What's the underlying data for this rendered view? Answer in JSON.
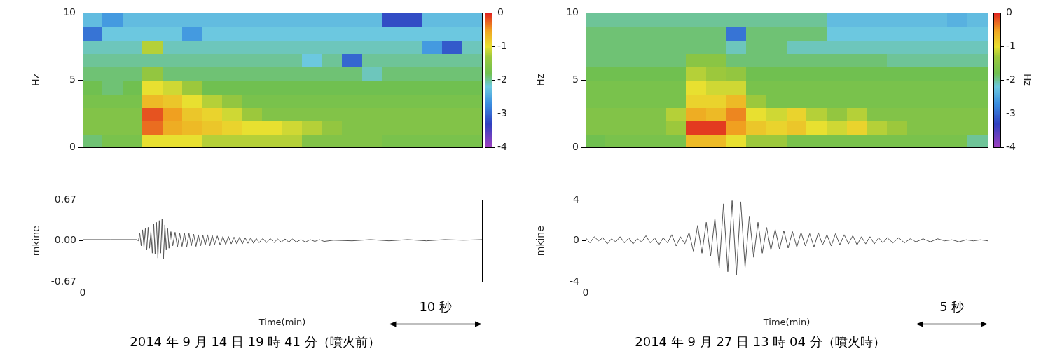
{
  "chart_data": [
    {
      "type": "heatmap",
      "y_label": "Hz",
      "grid": false,
      "tick_labels": "y",
      "xlim": [
        0,
        43
      ],
      "ylim": [
        0,
        10
      ],
      "yticks": [
        0,
        5,
        10
      ],
      "x_bins": [
        0,
        2.15,
        4.3,
        6.45,
        8.6,
        10.75,
        12.9,
        15.05,
        17.2,
        19.35,
        21.5,
        23.65,
        25.8,
        27.95,
        30.1,
        32.25,
        34.4,
        36.55,
        38.7,
        40.85,
        43
      ],
      "y_bins": [
        0,
        1,
        2,
        3,
        4,
        5,
        6,
        7,
        8,
        9,
        10
      ],
      "cells": [
        [
          -1.9,
          -1.7,
          -1.7,
          -1.0,
          -1.0,
          -1.0,
          -1.2,
          -1.2,
          -1.2,
          -1.2,
          -1.2,
          -1.6,
          -1.6,
          -1.6,
          -1.6,
          -1.7,
          -1.7,
          -1.7,
          -1.7,
          -1.7
        ],
        [
          -1.6,
          -1.6,
          -1.6,
          -0.3,
          -0.6,
          -0.7,
          -0.8,
          -0.9,
          -1.0,
          -1.0,
          -1.1,
          -1.2,
          -1.4,
          -1.6,
          -1.6,
          -1.6,
          -1.6,
          -1.6,
          -1.6,
          -1.6
        ],
        [
          -1.6,
          -1.6,
          -1.6,
          -0.2,
          -0.5,
          -0.8,
          -0.9,
          -1.1,
          -1.3,
          -1.6,
          -1.6,
          -1.6,
          -1.6,
          -1.6,
          -1.6,
          -1.6,
          -1.6,
          -1.6,
          -1.6,
          -1.6
        ],
        [
          -1.7,
          -1.7,
          -1.7,
          -0.7,
          -0.8,
          -1.0,
          -1.2,
          -1.4,
          -1.7,
          -1.7,
          -1.7,
          -1.7,
          -1.7,
          -1.7,
          -1.7,
          -1.7,
          -1.7,
          -1.7,
          -1.7,
          -1.7
        ],
        [
          -1.8,
          -1.9,
          -1.8,
          -1.0,
          -1.1,
          -1.3,
          -1.8,
          -1.8,
          -1.8,
          -1.8,
          -1.8,
          -1.8,
          -1.8,
          -1.8,
          -1.8,
          -1.8,
          -1.8,
          -1.8,
          -1.8,
          -1.8
        ],
        [
          -1.9,
          -1.9,
          -1.9,
          -1.4,
          -1.9,
          -1.9,
          -1.9,
          -1.9,
          -1.9,
          -1.9,
          -1.9,
          -1.9,
          -1.9,
          -1.9,
          -2.1,
          -1.9,
          -1.9,
          -1.9,
          -1.9,
          -1.9
        ],
        [
          -2.0,
          -2.0,
          -2.0,
          -2.0,
          -2.0,
          -2.0,
          -2.0,
          -2.0,
          -2.0,
          -2.0,
          -2.0,
          -2.2,
          -2.0,
          -3.0,
          -2.0,
          -2.0,
          -2.0,
          -2.0,
          -2.0,
          -2.0
        ],
        [
          -2.1,
          -2.1,
          -2.1,
          -1.2,
          -2.1,
          -2.1,
          -2.1,
          -2.1,
          -2.1,
          -2.1,
          -2.1,
          -2.1,
          -2.1,
          -2.1,
          -2.1,
          -2.1,
          -2.1,
          -2.6,
          -3.1,
          -2.1
        ],
        [
          -2.9,
          -2.2,
          -2.2,
          -2.2,
          -2.2,
          -2.6,
          -2.2,
          -2.2,
          -2.2,
          -2.2,
          -2.2,
          -2.2,
          -2.2,
          -2.2,
          -2.2,
          -2.2,
          -2.2,
          -2.2,
          -2.2,
          -2.2
        ],
        [
          -2.3,
          -2.6,
          -2.3,
          -2.3,
          -2.3,
          -2.3,
          -2.3,
          -2.3,
          -2.3,
          -2.3,
          -2.3,
          -2.3,
          -2.3,
          -2.3,
          -2.3,
          -3.2,
          -3.2,
          -2.3,
          -2.3,
          -2.3
        ]
      ],
      "colorbar": {
        "range": [
          -4,
          0
        ],
        "ticks": [
          0,
          -1,
          -2,
          -3,
          -4
        ]
      }
    },
    {
      "type": "line",
      "color": "#555555",
      "grid": false,
      "x_label": "Time(min)",
      "y_label": "mkine",
      "caption": "2014 年 9 月 14 日 19 時 41 分（噴火前）",
      "scale_bar": {
        "value": 10,
        "label": "10 秒"
      },
      "xlim": [
        0,
        43
      ],
      "xticks": [
        0
      ],
      "ylim": [
        -0.67,
        0.67
      ],
      "yticks": [
        -0.67,
        {
          "value": 0,
          "label": "0.00"
        },
        0.67
      ],
      "x": [
        0,
        3,
        5.8,
        6.0,
        6.15,
        6.3,
        6.45,
        6.6,
        6.75,
        6.9,
        7.05,
        7.2,
        7.35,
        7.5,
        7.65,
        7.8,
        7.95,
        8.1,
        8.25,
        8.4,
        8.55,
        8.7,
        8.85,
        9.0,
        9.15,
        9.3,
        9.5,
        9.7,
        9.95,
        10.2,
        10.45,
        10.7,
        10.95,
        11.2,
        11.45,
        11.7,
        11.95,
        12.2,
        12.45,
        12.7,
        12.95,
        13.2,
        13.45,
        13.7,
        13.95,
        14.2,
        14.5,
        14.8,
        15.1,
        15.4,
        15.7,
        16.0,
        16.3,
        16.6,
        16.9,
        17.2,
        17.5,
        17.8,
        18.1,
        18.4,
        18.7,
        19.0,
        19.4,
        19.8,
        20.2,
        20.6,
        21.0,
        21.4,
        21.8,
        22.2,
        22.6,
        23.0,
        23.5,
        24.0,
        24.5,
        25.0,
        25.5,
        26.0,
        27,
        29,
        31,
        33,
        35,
        37,
        39,
        41,
        43
      ],
      "values": [
        0.02,
        0.02,
        0.02,
        0.0,
        0.12,
        -0.08,
        0.18,
        -0.1,
        0.2,
        -0.15,
        0.22,
        -0.12,
        0.15,
        -0.2,
        0.28,
        -0.22,
        0.3,
        -0.28,
        0.33,
        -0.2,
        0.35,
        -0.3,
        0.26,
        -0.15,
        0.2,
        -0.12,
        0.15,
        -0.08,
        0.14,
        -0.1,
        0.12,
        -0.09,
        0.13,
        -0.1,
        0.12,
        -0.08,
        0.11,
        -0.09,
        0.1,
        -0.08,
        0.09,
        -0.07,
        0.1,
        -0.08,
        0.09,
        -0.06,
        0.08,
        -0.07,
        0.07,
        -0.06,
        0.07,
        -0.05,
        0.06,
        -0.05,
        0.06,
        -0.05,
        0.05,
        -0.04,
        0.05,
        -0.04,
        0.04,
        -0.03,
        0.04,
        -0.03,
        0.04,
        -0.03,
        0.03,
        -0.02,
        0.03,
        -0.02,
        0.03,
        -0.02,
        0.02,
        -0.02,
        0.02,
        -0.01,
        0.02,
        -0.01,
        0.01,
        0.0,
        0.02,
        0.0,
        0.02,
        0.0,
        0.02,
        0.01,
        0.02
      ]
    },
    {
      "type": "heatmap",
      "y_label": "Hz",
      "grid": false,
      "tick_labels": "y",
      "xlim": [
        0,
        28
      ],
      "ylim": [
        0,
        10
      ],
      "yticks": [
        0,
        5,
        10
      ],
      "x_bins": [
        0,
        1.4,
        2.8,
        4.2,
        5.6,
        7,
        8.4,
        9.8,
        11.2,
        12.6,
        14,
        15.4,
        16.8,
        18.2,
        19.6,
        21,
        22.4,
        23.8,
        25.2,
        26.6,
        28
      ],
      "y_bins": [
        0,
        1,
        2,
        3,
        4,
        5,
        6,
        7,
        8,
        9,
        10
      ],
      "cells": [
        [
          -1.8,
          -1.7,
          -1.7,
          -1.7,
          -1.7,
          -0.7,
          -0.7,
          -1.0,
          -1.3,
          -1.3,
          -1.7,
          -1.7,
          -1.7,
          -1.7,
          -1.7,
          -1.7,
          -1.7,
          -1.7,
          -1.7,
          -2.0
        ],
        [
          -1.6,
          -1.6,
          -1.6,
          -1.6,
          -1.3,
          -0.1,
          -0.1,
          -0.5,
          -0.8,
          -0.9,
          -0.8,
          -1.0,
          -1.1,
          -0.9,
          -1.2,
          -1.3,
          -1.6,
          -1.6,
          -1.6,
          -1.6
        ],
        [
          -1.6,
          -1.6,
          -1.6,
          -1.6,
          -1.2,
          -0.6,
          -0.7,
          -0.4,
          -1.0,
          -1.1,
          -0.9,
          -1.2,
          -1.4,
          -1.2,
          -1.6,
          -1.6,
          -1.6,
          -1.6,
          -1.6,
          -1.6
        ],
        [
          -1.7,
          -1.7,
          -1.7,
          -1.7,
          -1.7,
          -0.9,
          -0.9,
          -0.7,
          -1.3,
          -1.7,
          -1.7,
          -1.7,
          -1.7,
          -1.7,
          -1.7,
          -1.7,
          -1.7,
          -1.7,
          -1.7,
          -1.7
        ],
        [
          -1.7,
          -1.7,
          -1.7,
          -1.7,
          -1.7,
          -1.0,
          -1.1,
          -1.1,
          -1.7,
          -1.7,
          -1.7,
          -1.7,
          -1.7,
          -1.7,
          -1.7,
          -1.7,
          -1.7,
          -1.7,
          -1.7,
          -1.7
        ],
        [
          -1.8,
          -1.8,
          -1.8,
          -1.8,
          -1.8,
          -1.2,
          -1.3,
          -1.4,
          -1.8,
          -1.8,
          -1.8,
          -1.8,
          -1.8,
          -1.8,
          -1.8,
          -1.8,
          -1.8,
          -1.8,
          -1.8,
          -1.8
        ],
        [
          -1.9,
          -1.9,
          -1.9,
          -1.9,
          -1.9,
          -1.5,
          -1.5,
          -1.9,
          -1.9,
          -1.9,
          -1.9,
          -1.9,
          -1.9,
          -1.9,
          -1.9,
          -2.0,
          -2.0,
          -2.0,
          -2.0,
          -2.0
        ],
        [
          -1.9,
          -1.9,
          -1.9,
          -1.9,
          -1.9,
          -1.9,
          -1.9,
          -2.1,
          -1.9,
          -1.9,
          -2.1,
          -2.1,
          -2.1,
          -2.1,
          -2.1,
          -2.1,
          -2.1,
          -2.1,
          -2.1,
          -2.1
        ],
        [
          -1.9,
          -1.9,
          -1.9,
          -1.9,
          -1.9,
          -1.9,
          -1.9,
          -2.9,
          -1.9,
          -1.9,
          -1.9,
          -1.9,
          -2.2,
          -2.2,
          -2.2,
          -2.2,
          -2.2,
          -2.2,
          -2.2,
          -2.2
        ],
        [
          -2.0,
          -2.0,
          -2.0,
          -2.0,
          -2.0,
          -2.0,
          -2.0,
          -2.0,
          -2.0,
          -2.0,
          -2.0,
          -2.0,
          -2.3,
          -2.3,
          -2.3,
          -2.3,
          -2.3,
          -2.3,
          -2.4,
          -2.3
        ]
      ],
      "colorbar": {
        "range": [
          -4,
          0
        ],
        "ticks": [
          0,
          -1,
          -2,
          -3,
          -4
        ],
        "label": "Hz"
      }
    },
    {
      "type": "line",
      "color": "#555555",
      "grid": false,
      "x_label": "Time(min)",
      "y_label": "mkine",
      "caption": "2014 年 9 月 27 日 13 時 04 分（噴火時）",
      "scale_bar": {
        "value": 5,
        "label": "5 秒"
      },
      "xlim": [
        0,
        28
      ],
      "xticks": [
        0
      ],
      "ylim": [
        -4,
        4
      ],
      "yticks": [
        -4,
        0,
        4
      ],
      "x": [
        0,
        0.3,
        0.6,
        0.9,
        1.2,
        1.5,
        1.8,
        2.1,
        2.4,
        2.7,
        3.0,
        3.3,
        3.6,
        3.9,
        4.2,
        4.5,
        4.8,
        5.1,
        5.4,
        5.7,
        6.0,
        6.3,
        6.6,
        6.9,
        7.2,
        7.5,
        7.8,
        8.1,
        8.4,
        8.7,
        9.0,
        9.3,
        9.6,
        9.9,
        10.2,
        10.5,
        10.8,
        11.1,
        11.4,
        11.7,
        12.0,
        12.3,
        12.6,
        12.9,
        13.2,
        13.5,
        13.8,
        14.1,
        14.4,
        14.7,
        15.0,
        15.3,
        15.6,
        15.9,
        16.2,
        16.5,
        16.8,
        17.1,
        17.4,
        17.7,
        18.0,
        18.3,
        18.6,
        18.9,
        19.2,
        19.5,
        19.8,
        20.1,
        20.4,
        20.7,
        21.0,
        21.4,
        21.8,
        22.2,
        22.6,
        23.0,
        23.5,
        24.0,
        24.5,
        25.0,
        25.5,
        26.0,
        26.5,
        27.0,
        27.5,
        28
      ],
      "values": [
        0.3,
        -0.2,
        0.4,
        0.0,
        0.3,
        -0.3,
        0.2,
        -0.1,
        0.4,
        -0.2,
        0.3,
        -0.3,
        0.2,
        -0.1,
        0.5,
        -0.2,
        0.3,
        -0.4,
        0.3,
        -0.2,
        0.6,
        -0.5,
        0.4,
        -0.3,
        0.8,
        -1.0,
        1.5,
        -1.2,
        1.8,
        -1.5,
        2.2,
        -2.6,
        3.6,
        -3.0,
        3.9,
        -3.3,
        3.8,
        -2.6,
        2.4,
        -1.6,
        1.8,
        -1.2,
        1.3,
        -0.9,
        1.1,
        -0.8,
        1.0,
        -0.7,
        0.9,
        -0.6,
        0.8,
        -0.5,
        0.7,
        -0.6,
        0.8,
        -0.4,
        0.6,
        -0.5,
        0.7,
        -0.4,
        0.6,
        -0.3,
        0.5,
        -0.4,
        0.4,
        -0.3,
        0.4,
        -0.3,
        0.3,
        -0.2,
        0.3,
        -0.2,
        0.3,
        -0.2,
        0.2,
        -0.1,
        0.2,
        -0.1,
        0.2,
        0.0,
        0.1,
        -0.1,
        0.1,
        0.0,
        0.1,
        0.0
      ]
    }
  ]
}
